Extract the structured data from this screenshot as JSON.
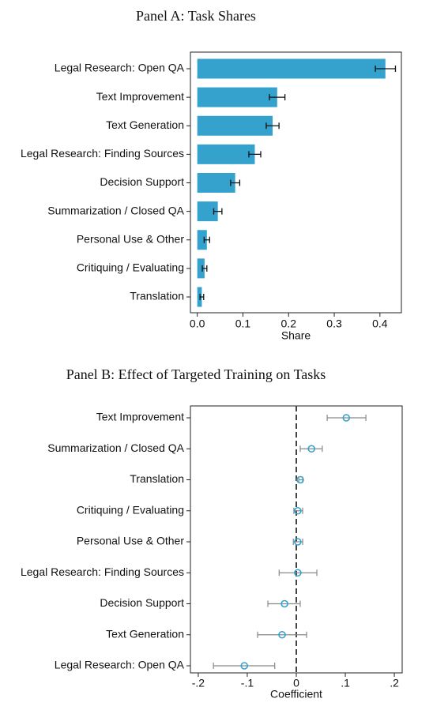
{
  "chart_data": [
    {
      "type": "bar",
      "title": "Panel A: Task Shares",
      "x_label": "Share",
      "categories": [
        "Legal Research: Open QA",
        "Text Improvement",
        "Text Generation",
        "Legal Research: Finding Sources",
        "Decision Support",
        "Summarization / Closed QA",
        "Personal Use & Other",
        "Critiquing / Evaluating",
        "Translation"
      ],
      "values": [
        0.412,
        0.175,
        0.165,
        0.126,
        0.083,
        0.045,
        0.021,
        0.016,
        0.01
      ],
      "errors": [
        0.022,
        0.017,
        0.014,
        0.013,
        0.01,
        0.009,
        0.006,
        0.005,
        0.004
      ],
      "color": "#35a2cd",
      "xlim": [
        -0.015,
        0.447
      ],
      "xticks": [
        {
          "value": 0,
          "label": "0.0"
        },
        0.1,
        0.2,
        0.3,
        0.4
      ]
    },
    {
      "type": "dot",
      "title": "Panel B: Effect of Targeted Training on Tasks",
      "x_label": "Coefficient",
      "categories": [
        "Text Improvement",
        "Summarization / Closed QA",
        "Translation",
        "Critiquing / Evaluating",
        "Personal Use & Other",
        "Legal Research: Finding Sources",
        "Decision Support",
        "Text Generation",
        "Legal Research: Open QA"
      ],
      "values": [
        0.102,
        0.031,
        0.008,
        0.003,
        0.003,
        0.003,
        -0.024,
        -0.029,
        -0.106
      ],
      "ci_low": [
        0.063,
        0.008,
        0.005,
        -0.005,
        -0.006,
        -0.035,
        -0.058,
        -0.079,
        -0.169
      ],
      "ci_high": [
        0.142,
        0.053,
        0.013,
        0.013,
        0.013,
        0.042,
        0.008,
        0.021,
        -0.044
      ],
      "color": "#35a2cd",
      "reference_line": 0,
      "xlim": [
        -0.216,
        0.216
      ],
      "xticks": [
        {
          "value": -0.2,
          "label": "-.2"
        },
        {
          "value": -0.1,
          "label": "-.1"
        },
        0,
        {
          "value": 0.1,
          "label": ".1"
        },
        {
          "value": 0.2,
          "label": ".2"
        }
      ]
    }
  ]
}
